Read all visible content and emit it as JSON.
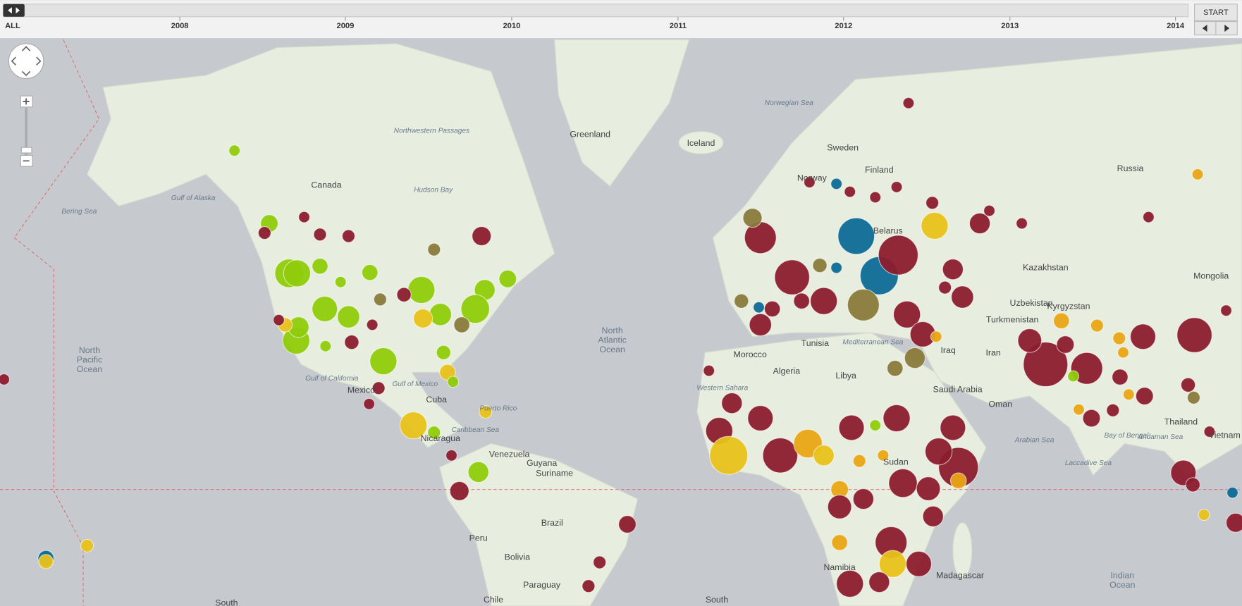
{
  "timeline": {
    "labels": [
      "ALL",
      "2008",
      "2009",
      "2010",
      "2011",
      "2012",
      "2013",
      "2014"
    ],
    "start": "START"
  },
  "map": {
    "labels": [
      "Greenland",
      "Iceland",
      "Canada",
      "Sweden",
      "Norway",
      "Finland",
      "Russia",
      "Belarus",
      "Kazakhstan",
      "Mongolia",
      "Uzbekistan",
      "Turkmenistan",
      "Kyrgyzstan",
      "Iran",
      "Iraq",
      "Saudi Arabia",
      "Oman",
      "Algeria",
      "Libya",
      "Morocco",
      "Tunisia",
      "Sudan",
      "Namibia",
      "Madagascar",
      "Thailand",
      "Vietnam",
      "Mexico",
      "Cuba",
      "Nicaragua",
      "Venezuela",
      "Guyana",
      "Suriname",
      "Brazil",
      "Peru",
      "Bolivia",
      "Paraguay",
      "Chile",
      "South",
      "South"
    ],
    "seas": [
      "Norwegian Sea",
      "Hudson Bay",
      "Gulf of Alaska",
      "Bering Sea",
      "Gulf of California",
      "Gulf of Mexico",
      "Caribbean Sea",
      "Puerto Rico",
      "Mediterranean Sea",
      "Western Sahara",
      "Arabian Sea",
      "Bay of Bengal",
      "Andaman Sea",
      "Laccadive Sea",
      "Northwestern Passages"
    ],
    "oceans": [
      [
        "North",
        "Atlantic",
        "Ocean"
      ],
      [
        "North",
        "Pacific",
        "Ocean"
      ],
      [
        "Indian",
        "Ocean"
      ]
    ]
  }
}
